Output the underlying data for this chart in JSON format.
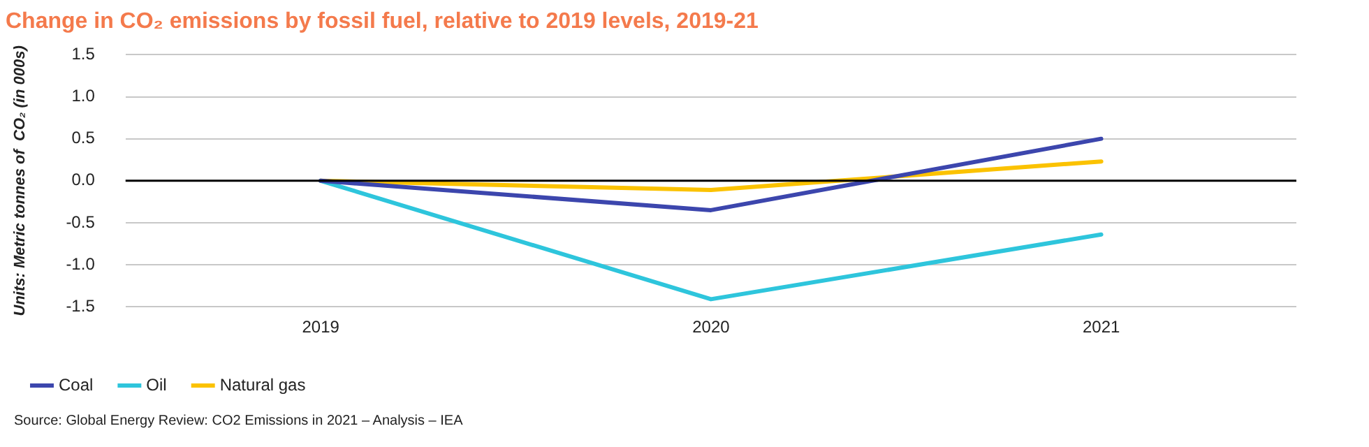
{
  "chart_data": {
    "type": "line",
    "title": "Change in CO₂ emissions by fossil fuel, relative to 2019 levels, 2019-21",
    "ylabel": "Units: Metric tonnes of  CO₂ (in 000s)",
    "categories": [
      "2019",
      "2020",
      "2021"
    ],
    "series": [
      {
        "name": "Coal",
        "color": "#3c46ad",
        "values": [
          0,
          -0.35,
          0.5
        ]
      },
      {
        "name": "Oil",
        "color": "#2ec5dc",
        "values": [
          0,
          -1.41,
          -0.64
        ]
      },
      {
        "name": "Natural gas",
        "color": "#fbc200",
        "values": [
          0,
          -0.11,
          0.23
        ]
      }
    ],
    "ylim": [
      -1.5,
      1.5
    ],
    "yticks": [
      {
        "value": -1.5,
        "label": "-1.5"
      },
      {
        "value": -1,
        "label": "-1.0"
      },
      {
        "value": -0.5,
        "label": "-0.5"
      },
      {
        "value": 0,
        "label": "0.0"
      },
      {
        "value": 0.5,
        "label": "0.5"
      },
      {
        "value": 1,
        "label": "1.0"
      },
      {
        "value": 1.5,
        "label": "1.5"
      }
    ],
    "ref_lines": [
      {
        "axis": "y",
        "value": 0,
        "color": "#000000"
      }
    ],
    "grid": "y",
    "legend": "bottom left",
    "marker": "none",
    "line_style": "solid",
    "annotations": [
      "Source: Global Energy Review: CO2 Emissions in 2021 – Analysis – IEA"
    ]
  }
}
